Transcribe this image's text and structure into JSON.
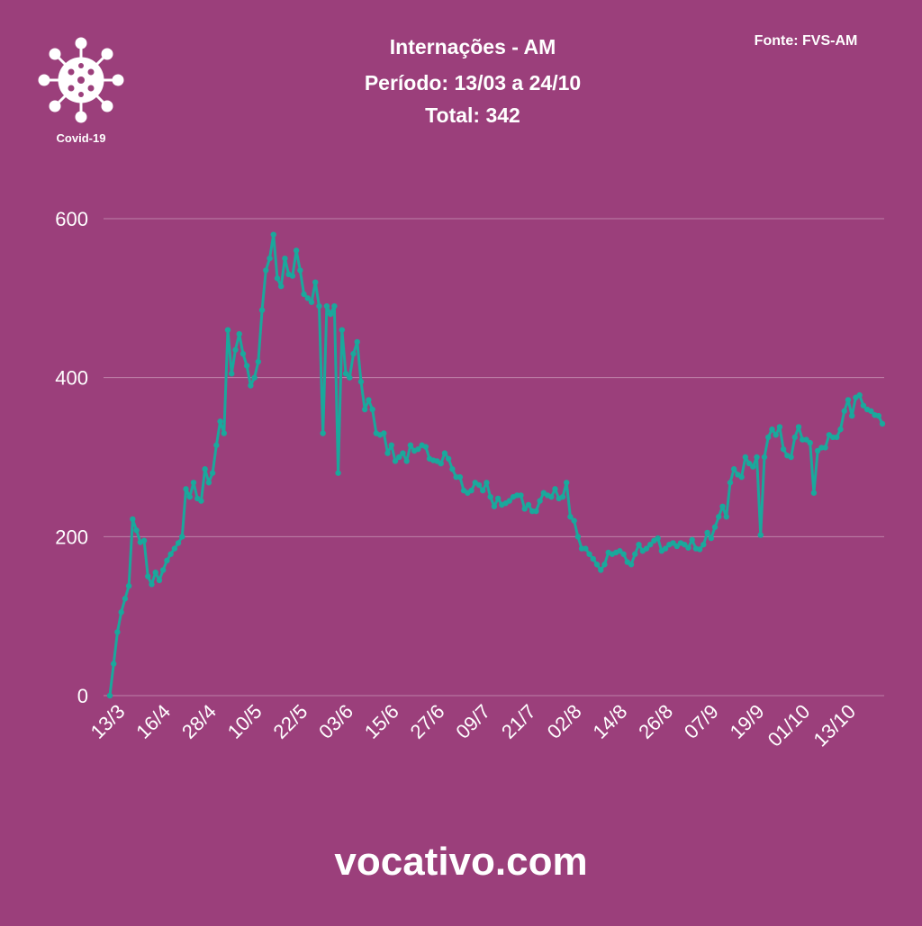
{
  "chart_data": {
    "type": "line",
    "title": "Internações - AM",
    "subtitle": "Período: 13/03 a 24/10",
    "total": "Total: 342",
    "source": "Fonte: FVS-AM",
    "badge": "Covid-19",
    "footer": "vocativo.com",
    "categories": [
      "13/3",
      null,
      null,
      null,
      null,
      null,
      null,
      null,
      null,
      null,
      null,
      null,
      "16/4",
      null,
      null,
      null,
      null,
      null,
      null,
      null,
      null,
      null,
      null,
      null,
      "28/4",
      null,
      null,
      null,
      null,
      null,
      null,
      null,
      null,
      null,
      null,
      null,
      "10/5",
      null,
      null,
      null,
      null,
      null,
      null,
      null,
      null,
      null,
      null,
      null,
      "22/5",
      null,
      null,
      null,
      null,
      null,
      null,
      null,
      null,
      null,
      null,
      null,
      "03/6",
      null,
      null,
      null,
      null,
      null,
      null,
      null,
      null,
      null,
      null,
      null,
      "15/6",
      null,
      null,
      null,
      null,
      null,
      null,
      null,
      null,
      null,
      null,
      null,
      "27/6",
      null,
      null,
      null,
      null,
      null,
      null,
      null,
      null,
      null,
      null,
      null,
      "09/7",
      null,
      null,
      null,
      null,
      null,
      null,
      null,
      null,
      null,
      null,
      null,
      "21/7",
      null,
      null,
      null,
      null,
      null,
      null,
      null,
      null,
      null,
      null,
      null,
      "02/8",
      null,
      null,
      null,
      null,
      null,
      null,
      null,
      null,
      null,
      null,
      null,
      "14/8",
      null,
      null,
      null,
      null,
      null,
      null,
      null,
      null,
      null,
      null,
      null,
      "26/8",
      null,
      null,
      null,
      null,
      null,
      null,
      null,
      null,
      null,
      null,
      null,
      "07/9",
      null,
      null,
      null,
      null,
      null,
      null,
      null,
      null,
      null,
      null,
      null,
      "19/9",
      null,
      null,
      null,
      null,
      null,
      null,
      null,
      null,
      null,
      null,
      null,
      "01/10",
      null,
      null,
      null,
      null,
      null,
      null,
      null,
      null,
      null,
      null,
      null,
      "13/10",
      null,
      null,
      null,
      null,
      null,
      null,
      null,
      null,
      null,
      null,
      null
    ],
    "series": [
      {
        "name": "Internações",
        "color": "#1aa89c",
        "values": [
          0,
          40,
          80,
          105,
          122,
          138,
          222,
          208,
          193,
          195,
          150,
          140,
          155,
          145,
          158,
          170,
          178,
          185,
          192,
          200,
          260,
          250,
          268,
          248,
          245,
          285,
          268,
          280,
          315,
          345,
          330,
          460,
          405,
          435,
          455,
          430,
          415,
          390,
          400,
          420,
          485,
          535,
          550,
          580,
          525,
          515,
          550,
          530,
          528,
          560,
          535,
          505,
          500,
          495,
          520,
          490,
          330,
          490,
          480,
          490,
          280,
          460,
          405,
          400,
          430,
          445,
          395,
          360,
          372,
          360,
          330,
          328,
          330,
          305,
          315,
          295,
          300,
          305,
          295,
          315,
          308,
          310,
          315,
          313,
          298,
          296,
          295,
          292,
          305,
          298,
          285,
          275,
          275,
          258,
          255,
          258,
          268,
          265,
          258,
          268,
          250,
          238,
          248,
          240,
          242,
          245,
          250,
          252,
          252,
          235,
          240,
          232,
          232,
          245,
          255,
          252,
          250,
          260,
          248,
          250,
          268,
          225,
          220,
          200,
          185,
          185,
          178,
          172,
          165,
          158,
          165,
          180,
          178,
          180,
          182,
          178,
          168,
          165,
          178,
          190,
          182,
          185,
          190,
          195,
          198,
          182,
          185,
          190,
          192,
          188,
          192,
          190,
          186,
          196,
          185,
          184,
          190,
          205,
          198,
          212,
          225,
          238,
          225,
          268,
          285,
          278,
          275,
          300,
          292,
          288,
          300,
          202,
          300,
          325,
          335,
          328,
          338,
          310,
          302,
          300,
          325,
          338,
          322,
          322,
          318,
          255,
          308,
          312,
          312,
          328,
          325,
          325,
          335,
          358,
          372,
          352,
          375,
          378,
          365,
          360,
          358,
          353,
          352,
          342
        ]
      }
    ],
    "ylim": [
      0,
      600
    ],
    "yticks": [
      0,
      200,
      400,
      600
    ],
    "grid": true
  }
}
